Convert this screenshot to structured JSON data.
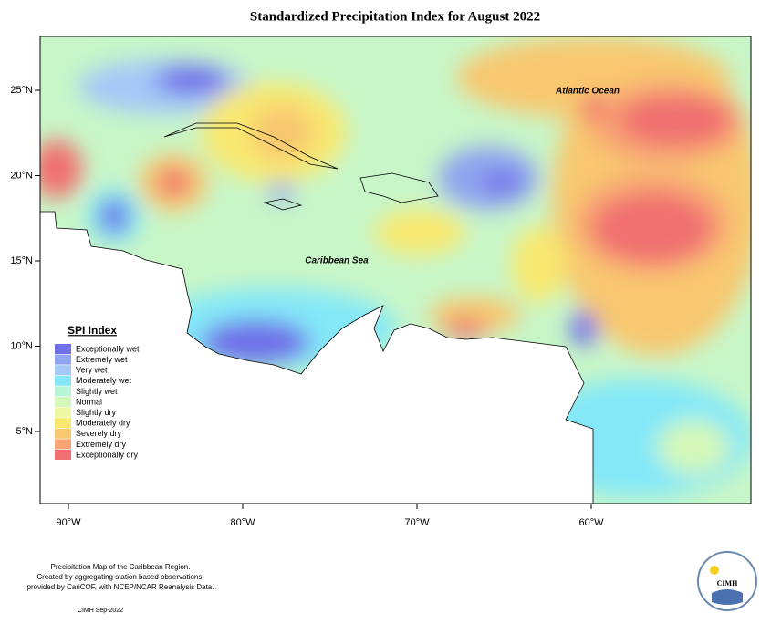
{
  "header": {
    "title": "Standardized Precipitation Index for August 2022"
  },
  "map": {
    "lon_labels": [
      "90°W",
      "80°W",
      "70°W",
      "60°W"
    ],
    "lat_labels": [
      "25°N",
      "20°N",
      "15°N",
      "10°N",
      "5°N"
    ],
    "places": [
      "Atlantic Ocean",
      "Caribbean Sea"
    ]
  },
  "legend": {
    "title": "SPI Index",
    "entries": [
      {
        "label": "Exceptionally wet",
        "color": "#7070e8"
      },
      {
        "label": "Extremely wet",
        "color": "#90a4f0"
      },
      {
        "label": "Very wet",
        "color": "#a4c8f8"
      },
      {
        "label": "Moderately wet",
        "color": "#84e8f8"
      },
      {
        "label": "Slightly wet",
        "color": "#b8f4d8"
      },
      {
        "label": "Normal",
        "color": "#d4f8b8"
      },
      {
        "label": "Slightly dry",
        "color": "#eef8a0"
      },
      {
        "label": "Moderately dry",
        "color": "#f8e870"
      },
      {
        "label": "Severely dry",
        "color": "#f8c870"
      },
      {
        "label": "Extremely dry",
        "color": "#f8a474"
      },
      {
        "label": "Exceptionally dry",
        "color": "#f07070"
      }
    ]
  },
  "footer": {
    "lines": [
      "Precipitation Map of the Caribbean Region.",
      "Created by aggregating station based observations,",
      "provided by CariCOF, with NCEP/NCAR Reanalysis Data."
    ],
    "date": "CIMH Sep-2022",
    "logo": "CIMH"
  }
}
